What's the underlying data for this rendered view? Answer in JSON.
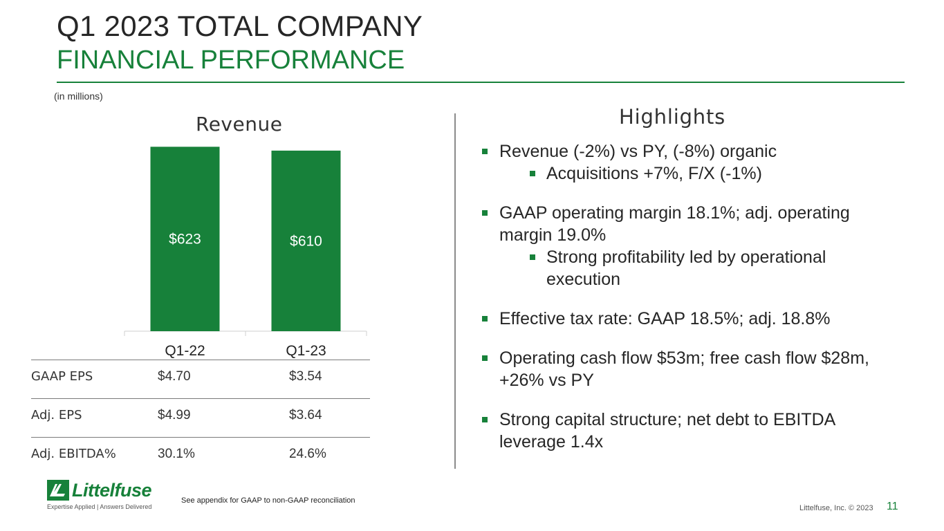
{
  "header": {
    "title_line1": "Q1 2023 TOTAL COMPANY",
    "title_line2": "FINANCIAL PERFORMANCE"
  },
  "units_note": "(in millions)",
  "chart_data": {
    "type": "bar",
    "title": "Revenue",
    "categories": [
      "Q1-22",
      "Q1-23"
    ],
    "values": [
      623,
      610
    ],
    "data_labels": [
      "$623",
      "$610"
    ],
    "ylim": [
      0,
      640
    ],
    "xlabel": "",
    "ylabel": "",
    "grid": false,
    "bar_color": "#17813a"
  },
  "eps_table": {
    "rows": [
      {
        "label": "GAAP EPS",
        "q1_22": "$4.70",
        "q1_23": "$3.54"
      },
      {
        "label": "Adj. EPS",
        "q1_22": "$4.99",
        "q1_23": "$3.64"
      },
      {
        "label": "Adj. EBITDA%",
        "q1_22": "30.1%",
        "q1_23": "24.6%"
      }
    ]
  },
  "highlights": {
    "title": "Highlights",
    "items": [
      {
        "text": "Revenue (-2%) vs PY, (-8%) organic"
      },
      {
        "text": "Acquisitions +7%, F/X (-1%)"
      },
      {
        "text_l1": "GAAP operating margin 18.1%; adj. operating",
        "text_l2": "margin 19.0%"
      },
      {
        "text_l1": "Strong profitability led by operational",
        "text_l2": "execution"
      },
      {
        "text": "Effective tax rate: GAAP 18.5%; adj. 18.8%"
      },
      {
        "text_l1": "Operating cash flow $53m; free cash flow $28m,",
        "text_l2": "+26% vs PY"
      },
      {
        "text_l1": "Strong capital structure; net debt to EBITDA",
        "text_l2": "leverage 1.4x"
      }
    ]
  },
  "footer": {
    "logo_text": "Littelfuse",
    "logo_tagline": "Expertise Applied | Answers Delivered",
    "footnote": "See appendix for GAAP to non-GAAP reconciliation",
    "copyright": "Littelfuse, Inc. © 2023",
    "page_number": "11"
  },
  "colors": {
    "brand_green": "#17813a",
    "text_dark": "#262626"
  }
}
